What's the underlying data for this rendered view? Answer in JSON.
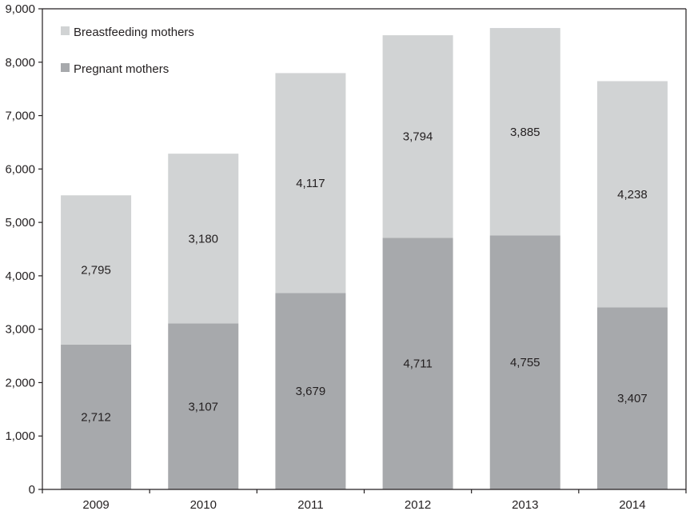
{
  "chart_data": {
    "type": "bar",
    "stacked": true,
    "categories": [
      "2009",
      "2010",
      "2011",
      "2012",
      "2013",
      "2014"
    ],
    "series": [
      {
        "name": "Pregnant mothers",
        "values": [
          2712,
          3107,
          3679,
          4711,
          4755,
          3407
        ],
        "color": "#a7a9ac"
      },
      {
        "name": "Breastfeeding mothers",
        "values": [
          2795,
          3180,
          4117,
          3794,
          3885,
          4238
        ],
        "color": "#d1d3d4"
      }
    ],
    "data_labels": {
      "Pregnant mothers": [
        "2,712",
        "3,107",
        "3,679",
        "4,711",
        "4,755",
        "3,407"
      ],
      "Breastfeeding mothers": [
        "2,795",
        "3,180",
        "4,117",
        "3,794",
        "3,885",
        "4,238"
      ]
    },
    "y_ticks": [
      "0",
      "1,000",
      "2,000",
      "3,000",
      "4,000",
      "5,000",
      "6,000",
      "7,000",
      "8,000",
      "9,000"
    ],
    "ylim": [
      0,
      9000
    ],
    "grid": false,
    "legend_position": "top-left",
    "legend_order": [
      "Breastfeeding mothers",
      "Pregnant mothers"
    ],
    "title": "",
    "xlabel": "",
    "ylabel": "",
    "axis_color": "#231f20"
  }
}
